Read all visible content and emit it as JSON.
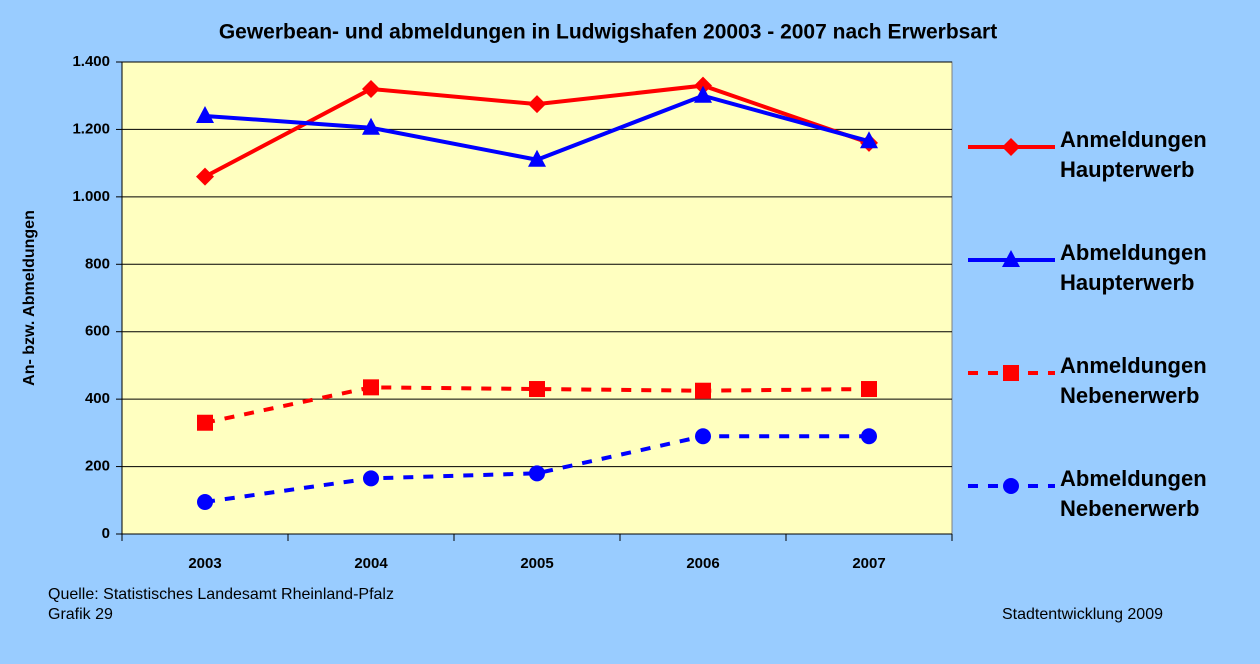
{
  "chart_data": {
    "type": "line",
    "title": "Gewerbean- und abmeldungen in Ludwigshafen 20003 - 2007 nach Erwerbsart",
    "y_label": "An- bzw. Abmeldungen",
    "categories": [
      "2003",
      "2004",
      "2005",
      "2006",
      "2007"
    ],
    "series": [
      {
        "name": "Anmeldungen Haupterwerb",
        "color": "#ff0000",
        "dash": "solid",
        "marker": "diamond",
        "values": [
          1060,
          1320,
          1275,
          1330,
          1160
        ]
      },
      {
        "name": "Abmeldungen Haupterwerb",
        "color": "#0000ff",
        "dash": "solid",
        "marker": "triangle",
        "values": [
          1240,
          1205,
          1110,
          1300,
          1165
        ]
      },
      {
        "name": "Anmeldungen Nebenerwerb",
        "color": "#ff0000",
        "dash": "dashed",
        "marker": "square",
        "values": [
          330,
          435,
          430,
          425,
          430
        ]
      },
      {
        "name": "Abmeldungen Nebenerwerb",
        "color": "#0000ff",
        "dash": "dashed",
        "marker": "circle",
        "values": [
          95,
          165,
          180,
          290,
          290
        ]
      }
    ],
    "ylim": [
      0,
      1400
    ],
    "yticks": [
      0,
      200,
      400,
      600,
      800,
      {
        "value": 1000,
        "label": "1.000"
      },
      {
        "value": 1200,
        "label": "1.200"
      },
      {
        "value": 1400,
        "label": "1.400"
      }
    ],
    "grid": true,
    "legend": "right",
    "source": "Quelle: Statistisches Landesamt Rheinland-Pfalz",
    "figure_label": "Grafik 29",
    "credit": "Stadtentwicklung 2009"
  }
}
